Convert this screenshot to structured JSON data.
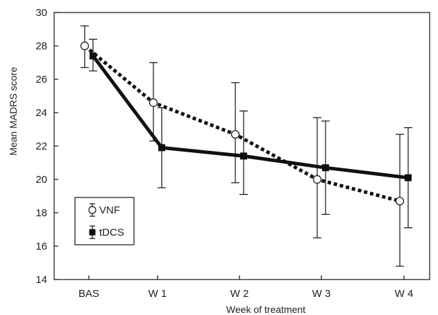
{
  "chart_data": {
    "type": "line",
    "title": "",
    "xlabel": "Week of treatment",
    "ylabel": "Mean MADRS score",
    "categories": [
      "BAS",
      "W 1",
      "W 2",
      "W 3",
      "W 4"
    ],
    "ylim": [
      14,
      30
    ],
    "yticks": [
      14,
      16,
      18,
      20,
      22,
      24,
      26,
      28,
      30
    ],
    "grid": false,
    "legend": "bottom-left",
    "series": [
      {
        "name": "VNF",
        "marker": "open-circle",
        "line": "dotted",
        "values": [
          28.0,
          24.6,
          22.7,
          20.0,
          18.7
        ],
        "error_low": [
          26.7,
          22.3,
          19.8,
          16.5,
          14.8
        ],
        "error_high": [
          29.2,
          27.0,
          25.8,
          23.7,
          22.7
        ]
      },
      {
        "name": "tDCS",
        "marker": "filled-square",
        "line": "solid",
        "values": [
          27.4,
          21.9,
          21.4,
          20.7,
          20.1
        ],
        "error_low": [
          26.5,
          19.5,
          19.1,
          17.9,
          17.1
        ],
        "error_high": [
          28.4,
          24.3,
          24.1,
          23.5,
          23.1
        ]
      }
    ],
    "colors": {
      "line": "#111111",
      "marker_fill_open": "#ffffff"
    }
  }
}
